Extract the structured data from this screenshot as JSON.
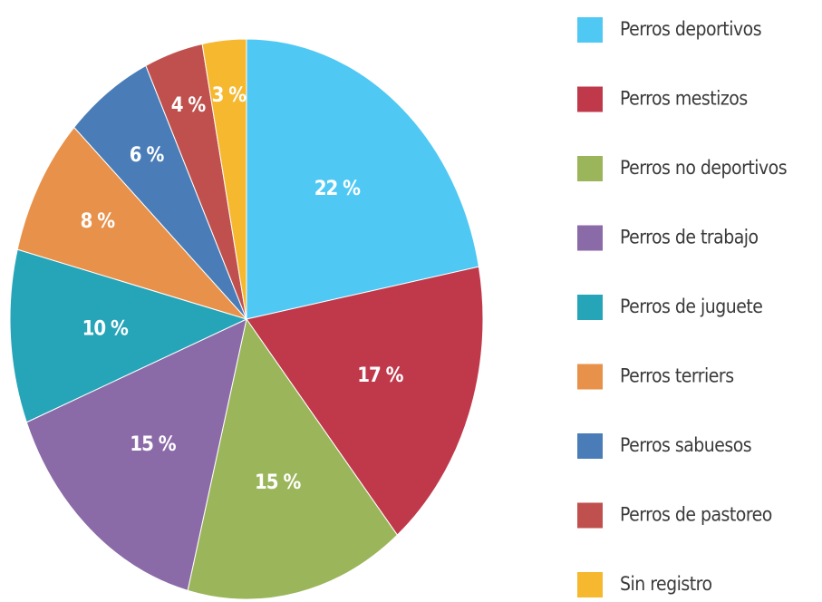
{
  "chart_data": {
    "type": "pie",
    "categories": [
      "Perros deportivos",
      "Perros mestizos",
      "Perros no deportivos",
      "Perros de trabajo",
      "Perros de juguete",
      "Perros terriers",
      "Perros sabuesos",
      "Perros de pastoreo",
      "Sin registro"
    ],
    "values": [
      22,
      17,
      15,
      15,
      10,
      8,
      6,
      4,
      3
    ],
    "value_labels": [
      "22 %",
      "17 %",
      "15 %",
      "15 %",
      "10 %",
      "8 %",
      "6 %",
      "4 %",
      "3 %"
    ],
    "colors": [
      "#4fc8f4",
      "#c0394b",
      "#9bb55a",
      "#8b6aa8",
      "#26a4b8",
      "#e8914a",
      "#4a7db8",
      "#c0504d",
      "#f5b82e"
    ]
  }
}
